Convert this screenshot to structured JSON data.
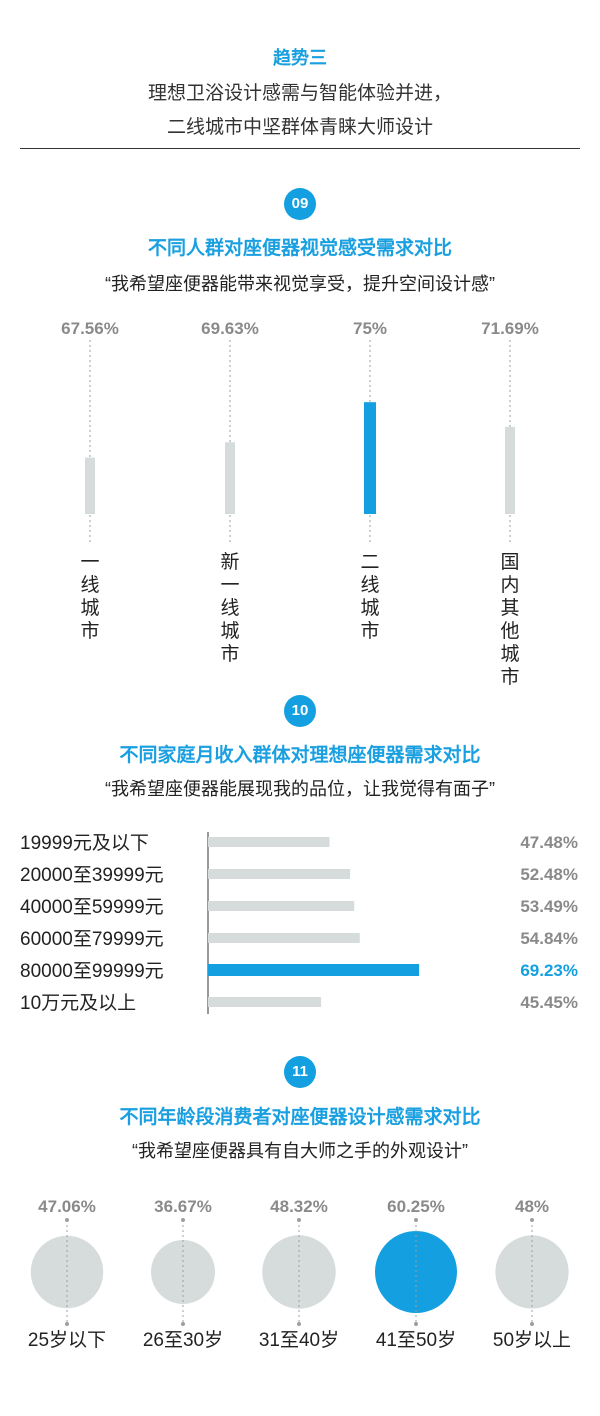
{
  "header": {
    "trend_label": "趋势三",
    "subtitle_line1": "理想卫浴设计感需与智能体验并进，",
    "subtitle_line2": "二线城市中坚群体青睐大师设计"
  },
  "section_09": {
    "badge": "09",
    "title": "不同人群对座便器视觉感受需求对比",
    "quote": "“我希望座便器能带来视觉享受，提升空间设计感”"
  },
  "section_10": {
    "badge": "10",
    "title": "不同家庭月收入群体对理想座便器需求对比",
    "quote": "“我希望座便器能展现我的品位，让我觉得有面子”"
  },
  "section_11": {
    "badge": "11",
    "title": "不同年龄段消费者对座便器设计感需求对比",
    "quote": "“我希望座便器具有自大师之手的外观设计”"
  },
  "colors": {
    "accent": "#14a0e0",
    "gray_bar": "#d6dcdc",
    "value_gray": "#8a8a8a"
  },
  "chart_data": [
    {
      "type": "bar",
      "orientation": "vertical",
      "categories": [
        "一线城市",
        "新一线城市",
        "二线城市",
        "国内其他城市"
      ],
      "values": [
        67.56,
        69.63,
        75,
        71.69
      ],
      "value_labels": [
        "67.56%",
        "69.63%",
        "75%",
        "71.69%"
      ],
      "highlight_index": 2
    },
    {
      "type": "bar",
      "orientation": "horizontal",
      "categories": [
        "19999元及以下",
        "20000至39999元",
        "40000至59999元",
        "60000至79999元",
        "80000至99999元",
        "10万元及以上"
      ],
      "values": [
        47.48,
        52.48,
        53.49,
        54.84,
        69.23,
        45.45
      ],
      "value_labels": [
        "47.48%",
        "52.48%",
        "53.49%",
        "54.84%",
        "69.23%",
        "45.45%"
      ],
      "highlight_index": 4
    },
    {
      "type": "scatter",
      "marker": "circle-size",
      "categories": [
        "25岁以下",
        "26至30岁",
        "31至40岁",
        "41至50岁",
        "50岁以上"
      ],
      "values": [
        47.06,
        36.67,
        48.32,
        60.25,
        48
      ],
      "value_labels": [
        "47.06%",
        "36.67%",
        "48.32%",
        "60.25%",
        "48%"
      ],
      "highlight_index": 3
    }
  ]
}
